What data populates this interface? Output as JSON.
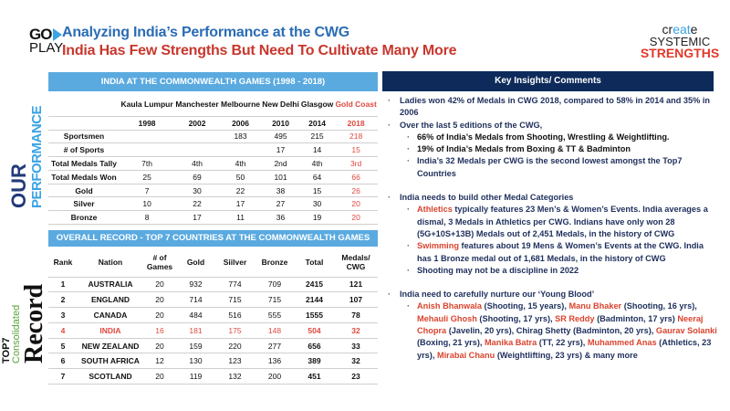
{
  "header": {
    "logo_top": "GO",
    "logo_bottom": "PLAY",
    "title": "Analyzing India’s Performance at the CWG",
    "subtitle": "India Has Few Strengths But Need To Cultivate Many More",
    "brand": {
      "create_a": "cr",
      "create_b": "eat",
      "create_c": "e",
      "systemic": "SYSTEMIC",
      "strengths": "STRENGTHS"
    }
  },
  "side_labels": {
    "our": "OUR",
    "performance": "PERFORMANCE",
    "top7": "TOP7",
    "consolidated": "Consolidated",
    "record": "Record"
  },
  "india_table": {
    "title": "INDIA AT THE COMMONWEALTH GAMES (1998 - 2018)",
    "cities": [
      "Kaula Lumpur",
      "Manchester",
      "Melbourne",
      "New Delhi",
      "Glasgow",
      "Gold Coast"
    ],
    "years": [
      "1998",
      "2002",
      "2006",
      "2010",
      "2014",
      "2018"
    ],
    "rows": [
      {
        "label": "Sportsmen",
        "values": [
          "",
          "",
          "183",
          "495",
          "215",
          "218"
        ]
      },
      {
        "label": "# of Sports",
        "values": [
          "",
          "",
          "",
          "17",
          "14",
          "15"
        ]
      },
      {
        "label": "Total Medals Tally",
        "values": [
          "7th",
          "4th",
          "4th",
          "2nd",
          "4th",
          "3rd"
        ]
      },
      {
        "label": "Total Medals Won",
        "values": [
          "25",
          "69",
          "50",
          "101",
          "64",
          "66"
        ]
      },
      {
        "label": "Gold",
        "values": [
          "7",
          "30",
          "22",
          "38",
          "15",
          "26"
        ]
      },
      {
        "label": "Silver",
        "values": [
          "10",
          "22",
          "17",
          "27",
          "30",
          "20"
        ]
      },
      {
        "label": "Bronze",
        "values": [
          "8",
          "17",
          "11",
          "36",
          "19",
          "20"
        ]
      }
    ]
  },
  "top7_table": {
    "title": "OVERALL RECORD - TOP 7 COUNTRIES AT THE COMMONWEALTH GAMES",
    "columns": [
      "Rank",
      "Nation",
      "# of Games",
      "Gold",
      "Siilver",
      "Bronze",
      "Total",
      "Medals/ CWG"
    ],
    "rows": [
      [
        "1",
        "AUSTRALIA",
        "20",
        "932",
        "774",
        "709",
        "2415",
        "121"
      ],
      [
        "2",
        "ENGLAND",
        "20",
        "714",
        "715",
        "715",
        "2144",
        "107"
      ],
      [
        "3",
        "CANADA",
        "20",
        "484",
        "516",
        "555",
        "1555",
        "78"
      ],
      [
        "4",
        "INDIA",
        "16",
        "181",
        "175",
        "148",
        "504",
        "32"
      ],
      [
        "5",
        "NEW ZEALAND",
        "20",
        "159",
        "220",
        "277",
        "656",
        "33"
      ],
      [
        "6",
        "SOUTH AFRICA",
        "12",
        "130",
        "123",
        "136",
        "389",
        "32"
      ],
      [
        "7",
        "SCOTLAND",
        "20",
        "119",
        "132",
        "200",
        "451",
        "23"
      ]
    ],
    "highlight_row": 3
  },
  "insights": {
    "title": "Key Insights/ Comments",
    "items": [
      {
        "level": 1,
        "segments": [
          {
            "text": "Ladies won 42% of Medals in CWG 2018, compared to 58% in 2014 and 35% in 2006"
          }
        ]
      },
      {
        "level": 1,
        "segments": [
          {
            "text": "Over the last 5 editions of the CWG,"
          }
        ]
      },
      {
        "level": 2,
        "black": true,
        "segments": [
          {
            "text": "66% of India’s Medals from Shooting, Wrestling & Weightlifting."
          }
        ]
      },
      {
        "level": 2,
        "black": true,
        "segments": [
          {
            "text": "19% of India’s Medals from Boxing & TT & Badminton"
          }
        ]
      },
      {
        "level": 2,
        "segments": [
          {
            "text": "India’s 32 Medals per CWG is the second lowest amongst the Top7 Countries"
          }
        ]
      },
      {
        "gap": true
      },
      {
        "level": 1,
        "segments": [
          {
            "text": "India needs to build other Medal Categories"
          }
        ]
      },
      {
        "level": 2,
        "segments": [
          {
            "text": "Athletics",
            "red": true
          },
          {
            "text": " typically features 23 Men’s & Women’s Events. India averages a dismal, 3 Medals in Athletics per CWG. Indians have only won 28 (5G+10S+13B) Medals out of 2,451 Medals, in the history of CWG"
          }
        ]
      },
      {
        "level": 2,
        "segments": [
          {
            "text": "Swimming",
            "red": true
          },
          {
            "text": " features about 19 Mens & Women’s Events at the CWG. India has 1 Bronze medal out of 1,681 Medals, in the history of CWG"
          }
        ]
      },
      {
        "level": 2,
        "segments": [
          {
            "text": "Shooting may not be a discipline in 2022"
          }
        ]
      },
      {
        "gap": true
      },
      {
        "level": 1,
        "segments": [
          {
            "text": "India need to carefully nurture our ‘Young Blood’"
          }
        ]
      },
      {
        "level": 2,
        "segments": [
          {
            "text": "Anish Bhanwala",
            "red": true
          },
          {
            "text": " (Shooting, 15 years), "
          },
          {
            "text": "Manu Bhaker",
            "red": true
          },
          {
            "text": " (Shooting, 16 yrs), "
          },
          {
            "text": "Mehauli Ghosh",
            "red": true
          },
          {
            "text": " (Shooting, 17 yrs), "
          },
          {
            "text": "SR Reddy",
            "red": true
          },
          {
            "text": " (Badminton, 17 yrs)  "
          },
          {
            "text": "Neeraj Chopra",
            "red": true
          },
          {
            "text": " (Javelin, 20 yrs), Chirag Shetty (Badminton, 20 yrs), "
          },
          {
            "text": "Gaurav Solanki",
            "red": true
          },
          {
            "text": " (Boxing, 21 yrs), "
          },
          {
            "text": "Manika Batra",
            "red": true
          },
          {
            "text": " (TT, 22 yrs), "
          },
          {
            "text": "Muhammed Anas",
            "red": true
          },
          {
            "text": " (Athletics, 23 yrs), "
          },
          {
            "text": "Mirabai Chanu",
            "red": true
          },
          {
            "text": " (Weightlifting, 23 yrs) & many more"
          }
        ]
      }
    ]
  },
  "colors": {
    "title_blue": "#2b6cb4",
    "title_red": "#c8372d",
    "table_bar": "#5aaae0",
    "insight_bar": "#0d2a5a",
    "highlight": "#e0483e"
  }
}
